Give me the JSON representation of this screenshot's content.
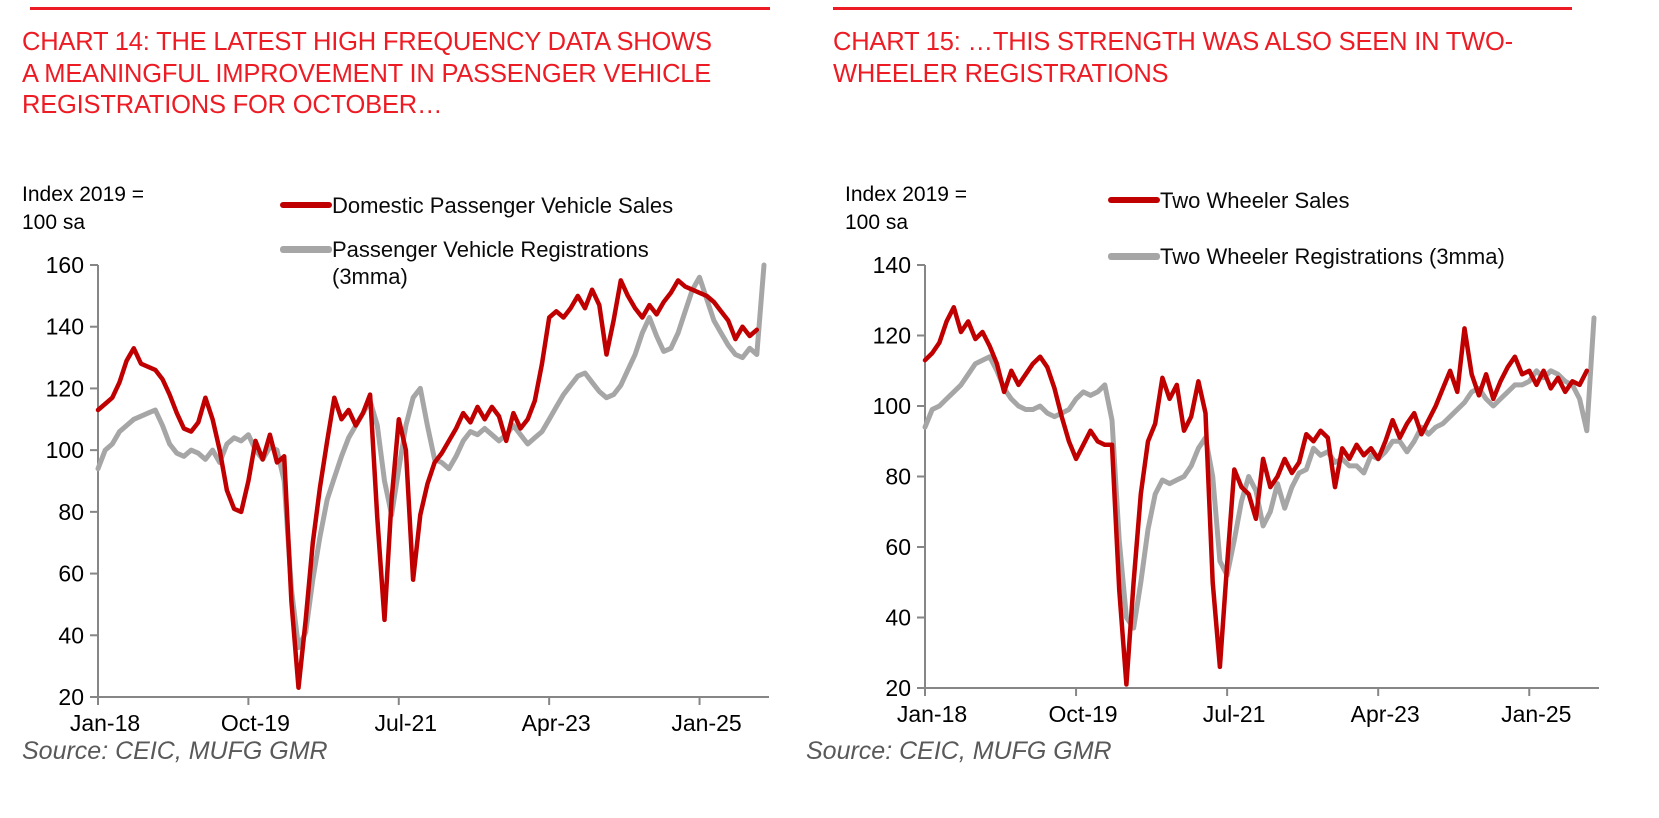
{
  "page": {
    "colors": {
      "title_red": "#ED1C24",
      "series_red": "#C00000",
      "series_gray": "#A6A6A6",
      "axis_gray": "#868686",
      "source_gray": "#595959",
      "text_black": "#000000"
    }
  },
  "left_panel": {
    "title": "CHART 14: THE LATEST HIGH FREQUENCY DATA SHOWS\nA MEANINGFUL IMPROVEMENT IN PASSENGER VEHICLE\nREGISTRATIONS FOR OCTOBER…",
    "axis_note": "Index 2019 =\n100 sa",
    "legend": [
      {
        "label": "Domestic Passenger Vehicle Sales",
        "color": "#C00000"
      },
      {
        "label": "Passenger Vehicle Registrations\n(3mma)",
        "color": "#A6A6A6"
      }
    ],
    "source": "Source: CEIC, MUFG GMR"
  },
  "right_panel": {
    "title": "CHART 15: …THIS STRENGTH WAS ALSO SEEN IN TWO-\nWHEELER REGISTRATIONS",
    "axis_note": "Index 2019 =\n100 sa",
    "legend": [
      {
        "label": "Two Wheeler Sales",
        "color": "#C00000"
      },
      {
        "label": "Two Wheeler Registrations (3mma)",
        "color": "#A6A6A6"
      }
    ],
    "source": "Source: CEIC, MUFG GMR"
  },
  "chart_data": [
    {
      "type": "line",
      "title": "Chart 14: Passenger vehicle sales vs registrations",
      "ylabel": "Index 2019 = 100 sa",
      "ylim": [
        20,
        160
      ],
      "ytick_step": 20,
      "grid": false,
      "legend_position": "top",
      "x_frequency": "monthly",
      "x_start": "Jan-18",
      "x_end": "Oct-25",
      "x_ticks": [
        {
          "month": 0,
          "label": "Jan-18"
        },
        {
          "month": 21,
          "label": "Oct-19"
        },
        {
          "month": 42,
          "label": "Jul-21"
        },
        {
          "month": 63,
          "label": "Apr-23"
        },
        {
          "month": 84,
          "label": "Jan-25"
        }
      ],
      "series": [
        {
          "id": "pv-registrations-3mma",
          "name": "Passenger Vehicle Registrations (3mma)",
          "color": "#A6A6A6",
          "width": 5,
          "z": 0,
          "values": [
            94,
            100,
            102,
            106,
            108,
            110,
            111,
            112,
            113,
            108,
            102,
            99,
            98,
            100,
            99,
            97,
            100,
            96,
            102,
            104,
            103,
            105,
            100,
            97,
            101,
            100,
            90,
            55,
            36,
            41,
            58,
            72,
            84,
            91,
            98,
            104,
            108,
            112,
            116,
            108,
            90,
            79,
            94,
            108,
            117,
            120,
            108,
            97,
            96,
            94,
            98,
            103,
            106,
            105,
            107,
            105,
            103,
            105,
            108,
            105,
            102,
            104,
            106,
            110,
            114,
            118,
            121,
            124,
            125,
            122,
            119,
            117,
            118,
            121,
            126,
            131,
            138,
            143,
            137,
            132,
            133,
            138,
            145,
            152,
            156,
            149,
            142,
            138,
            134,
            131,
            130,
            133,
            131,
            160
          ]
        },
        {
          "id": "pv-sales",
          "name": "Domestic Passenger Vehicle Sales",
          "color": "#C00000",
          "width": 4.5,
          "z": 1,
          "values": [
            113,
            115,
            117,
            122,
            129,
            133,
            128,
            127,
            126,
            123,
            118,
            112,
            107,
            106,
            109,
            117,
            110,
            100,
            87,
            81,
            80,
            90,
            103,
            97,
            105,
            96,
            98,
            51,
            23,
            45,
            70,
            88,
            103,
            117,
            110,
            113,
            108,
            112,
            118,
            78,
            45,
            84,
            110,
            100,
            58,
            79,
            89,
            96,
            99,
            103,
            107,
            112,
            109,
            114,
            110,
            114,
            111,
            103,
            112,
            107,
            110,
            116,
            128,
            143,
            145,
            143,
            146,
            150,
            146,
            152,
            147,
            131,
            142,
            155,
            150,
            146,
            143,
            147,
            144,
            148,
            151,
            155,
            153,
            152,
            151,
            150,
            148,
            145,
            142,
            136,
            140,
            137,
            139
          ]
        }
      ]
    },
    {
      "type": "line",
      "title": "Chart 15: Two wheeler sales vs registrations",
      "ylabel": "Index 2019 = 100 sa",
      "ylim": [
        20,
        140
      ],
      "ytick_step": 20,
      "grid": false,
      "legend_position": "top",
      "x_frequency": "monthly",
      "x_start": "Jan-18",
      "x_end": "Oct-25",
      "x_ticks": [
        {
          "month": 0,
          "label": "Jan-18"
        },
        {
          "month": 21,
          "label": "Oct-19"
        },
        {
          "month": 42,
          "label": "Jul-21"
        },
        {
          "month": 63,
          "label": "Apr-23"
        },
        {
          "month": 84,
          "label": "Jan-25"
        }
      ],
      "series": [
        {
          "id": "tw-registrations-3mma",
          "name": "Two Wheeler Registrations (3mma)",
          "color": "#A6A6A6",
          "width": 5,
          "z": 0,
          "values": [
            94,
            99,
            100,
            102,
            104,
            106,
            109,
            112,
            113,
            114,
            110,
            105,
            102,
            100,
            99,
            99,
            100,
            98,
            97,
            98,
            99,
            102,
            104,
            103,
            104,
            106,
            96,
            62,
            40,
            37,
            50,
            65,
            75,
            79,
            78,
            79,
            80,
            83,
            88,
            91,
            80,
            56,
            52,
            62,
            73,
            80,
            76,
            66,
            70,
            78,
            71,
            77,
            81,
            82,
            88,
            86,
            87,
            84,
            85,
            83,
            83,
            81,
            86,
            85,
            87,
            90,
            90,
            87,
            90,
            94,
            92,
            94,
            95,
            97,
            99,
            101,
            104,
            105,
            102,
            100,
            102,
            104,
            106,
            106,
            107,
            110,
            108,
            110,
            109,
            107,
            106,
            102,
            93,
            125
          ]
        },
        {
          "id": "tw-sales",
          "name": "Two Wheeler Sales",
          "color": "#C00000",
          "width": 4.5,
          "z": 1,
          "values": [
            113,
            115,
            118,
            124,
            128,
            121,
            124,
            119,
            121,
            117,
            112,
            104,
            110,
            106,
            109,
            112,
            114,
            111,
            105,
            97,
            90,
            85,
            89,
            93,
            90,
            89,
            89,
            48,
            21,
            50,
            75,
            90,
            95,
            108,
            102,
            106,
            93,
            97,
            107,
            98,
            50,
            26,
            55,
            82,
            77,
            75,
            68,
            85,
            77,
            80,
            85,
            81,
            84,
            92,
            90,
            93,
            91,
            77,
            88,
            85,
            89,
            86,
            88,
            85,
            90,
            96,
            91,
            95,
            98,
            92,
            96,
            100,
            105,
            110,
            104,
            122,
            109,
            103,
            109,
            102,
            107,
            111,
            114,
            109,
            110,
            106,
            110,
            105,
            108,
            104,
            107,
            106,
            110
          ]
        }
      ]
    }
  ]
}
